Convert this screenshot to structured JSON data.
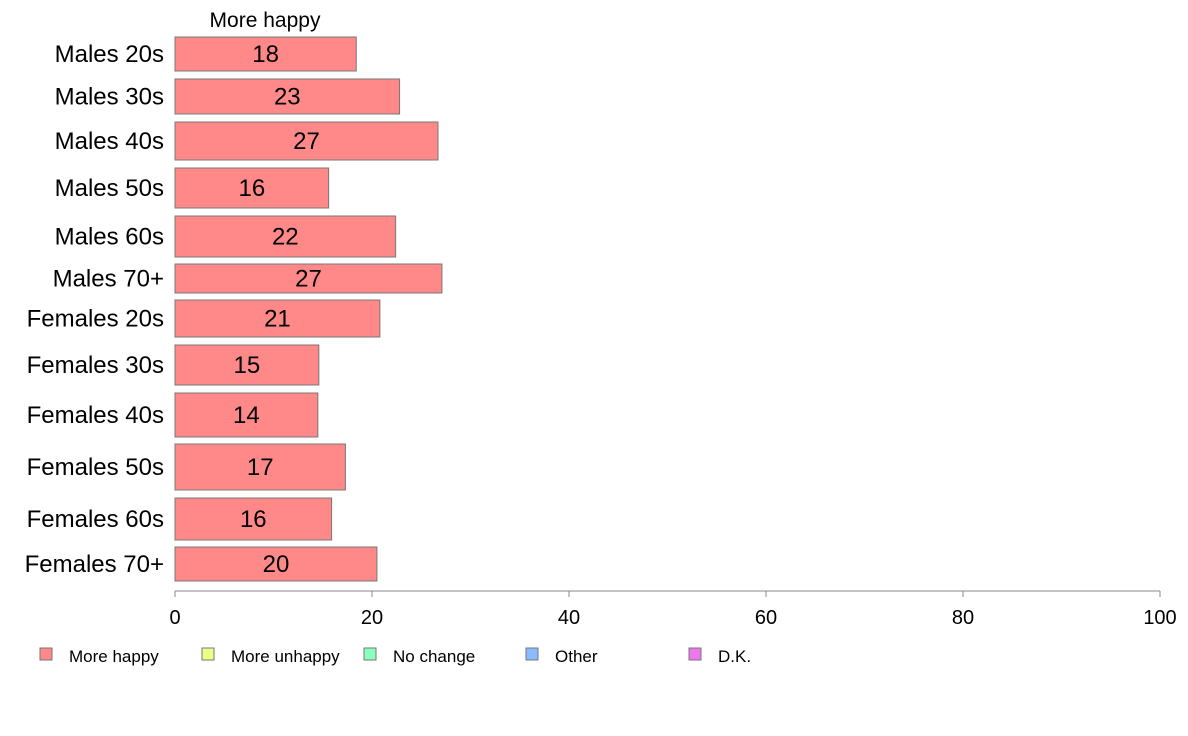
{
  "chart_data": {
    "type": "bar",
    "orientation": "horizontal",
    "stacked": true,
    "series_title": "More happy",
    "categories": [
      "Males 20s",
      "Males 30s",
      "Males 40s",
      "Males 50s",
      "Males 60s",
      "Males 70+",
      "Females 20s",
      "Females 30s",
      "Females 40s",
      "Females 50s",
      "Females 60s",
      "Females 70+"
    ],
    "series": [
      {
        "name": "More happy",
        "color": "#ff8888",
        "values": [
          18.4,
          22.8,
          26.7,
          15.6,
          22.4,
          27.1,
          20.8,
          14.6,
          14.5,
          17.3,
          15.9,
          20.5
        ],
        "labels": [
          "18",
          "23",
          "27",
          "16",
          "22",
          "27",
          "21",
          "15",
          "14",
          "17",
          "16",
          "20"
        ]
      }
    ],
    "xlim": [
      0,
      100
    ],
    "xticks": [
      "0",
      "20",
      "40",
      "60",
      "80",
      "100"
    ],
    "grid": false,
    "legend": {
      "placement": "bottom",
      "items": [
        {
          "name": "More happy",
          "color": "#ff8888"
        },
        {
          "name": "More unhappy",
          "color": "#eeff88"
        },
        {
          "name": "No change",
          "color": "#88ffbb"
        },
        {
          "name": "Other",
          "color": "#88bbff"
        },
        {
          "name": "D.K.",
          "color": "#ee77ee"
        }
      ]
    }
  }
}
